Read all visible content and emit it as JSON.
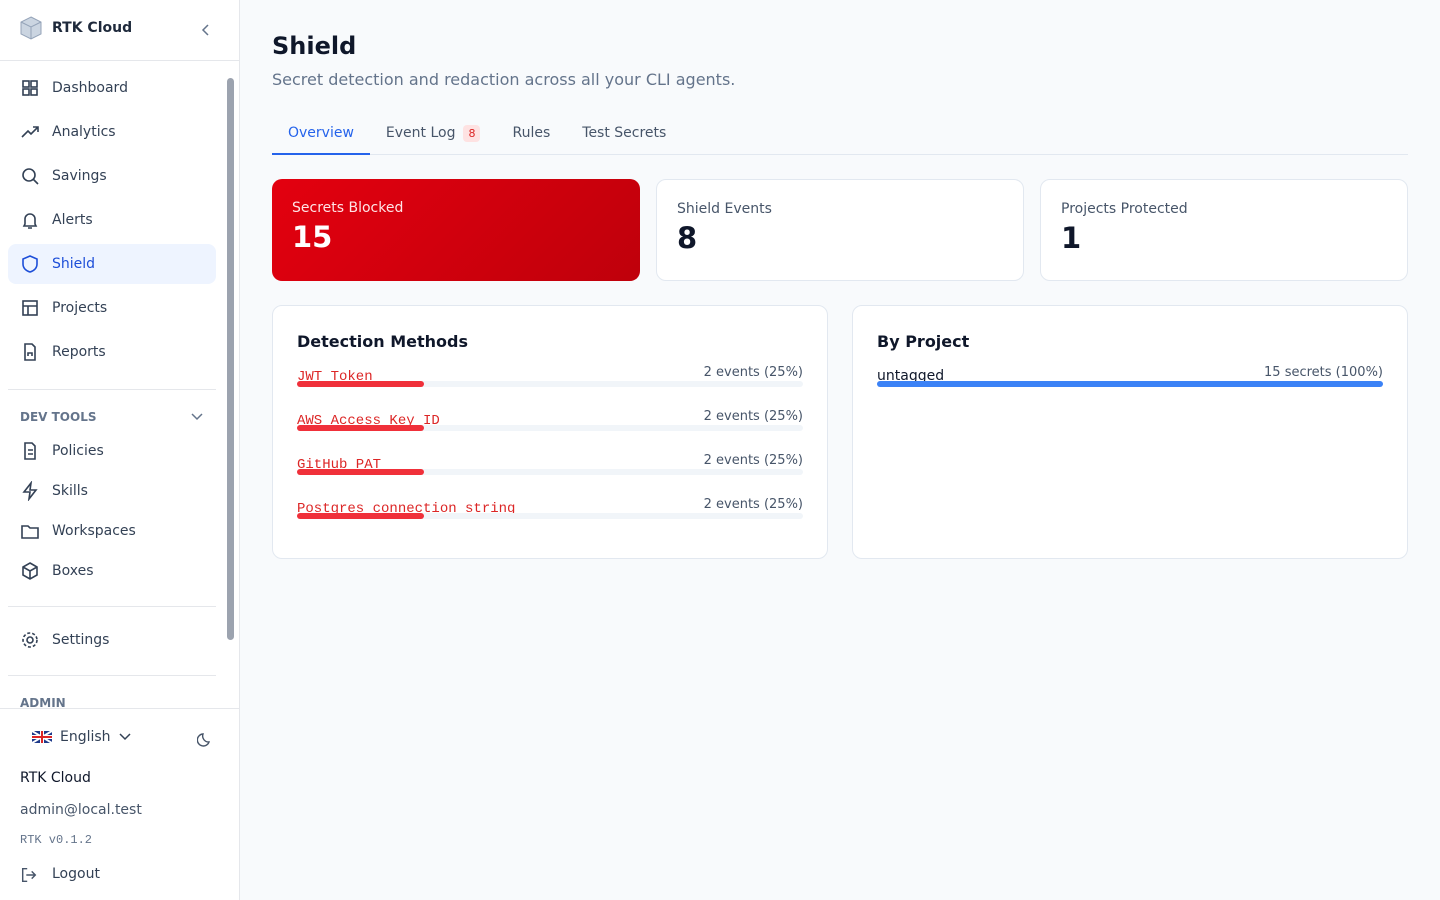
{
  "sidebar": {
    "brand": "RTK Cloud",
    "nav": [
      "Dashboard",
      "Analytics",
      "Savings",
      "Alerts",
      "Shield",
      "Projects",
      "Reports"
    ],
    "dev_tools": {
      "title": "DEV TOOLS",
      "items": [
        "Policies",
        "Skills",
        "Workspaces",
        "Boxes"
      ]
    },
    "settings": "Settings",
    "admin": "ADMIN",
    "footer": {
      "language": "English",
      "org": "RTK Cloud",
      "email": "admin@local.test",
      "version": "RTK v0.1.2",
      "logout": "Logout"
    }
  },
  "header": {
    "title": "Shield",
    "subtitle": "Secret detection and redaction across all your CLI agents."
  },
  "tabs": [
    {
      "label": "Overview"
    },
    {
      "label": "Event Log",
      "badge": 8
    },
    {
      "label": "Rules"
    },
    {
      "label": "Test Secrets"
    }
  ],
  "stats": [
    {
      "label": "Secrets Blocked",
      "value": 15
    },
    {
      "label": "Shield Events",
      "value": 8
    },
    {
      "label": "Projects Protected",
      "value": 1
    }
  ],
  "detection_methods": {
    "title": "Detection Methods",
    "rows": [
      {
        "name": "JWT Token",
        "label": "2 events (25%)",
        "share": 25
      },
      {
        "name": "AWS Access Key ID",
        "label": "2 events (25%)",
        "share": 25
      },
      {
        "name": "GitHub PAT",
        "label": "2 events (25%)",
        "share": 25
      },
      {
        "name": "Postgres connection string",
        "label": "2 events (25%)",
        "share": 25
      }
    ]
  },
  "by_project": {
    "title": "By Project",
    "rows": [
      {
        "name": "untagged",
        "label": "15 secrets (100%)",
        "share": 100
      }
    ]
  }
}
